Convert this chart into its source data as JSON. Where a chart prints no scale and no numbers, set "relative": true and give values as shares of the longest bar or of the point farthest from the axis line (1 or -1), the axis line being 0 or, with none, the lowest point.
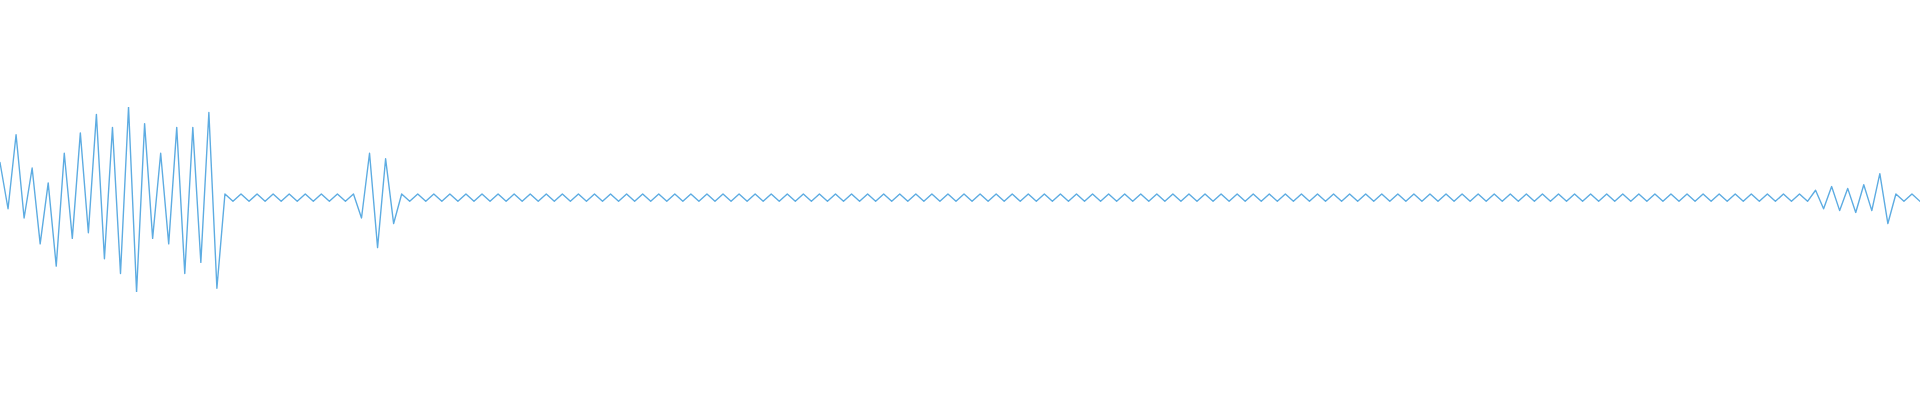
{
  "chart_data": {
    "type": "line",
    "relative": true,
    "categories": [
      null,
      null,
      null,
      null,
      null,
      null,
      null,
      null,
      null,
      null,
      null,
      null,
      null,
      null,
      null,
      null,
      null,
      null,
      null,
      null,
      null,
      null,
      null,
      null,
      null,
      null,
      null,
      null,
      null,
      null,
      null,
      null,
      null,
      null,
      null,
      null,
      null,
      null,
      null,
      null,
      null,
      null,
      null,
      null,
      null,
      null,
      null,
      null,
      null,
      null,
      null,
      null,
      null,
      null,
      null,
      null,
      null,
      null,
      null,
      null,
      null,
      null,
      null,
      null,
      null,
      null,
      null,
      null,
      null,
      null,
      null,
      null,
      null,
      null,
      null,
      null,
      null,
      null,
      null,
      null,
      null,
      null,
      null,
      null,
      null,
      null,
      null,
      null,
      null,
      null,
      null,
      null,
      null,
      null,
      null,
      null,
      null,
      null,
      null,
      null,
      null,
      null,
      null,
      null,
      null,
      null,
      null,
      null,
      null,
      null,
      null,
      null,
      null,
      null,
      null,
      null,
      null,
      null,
      null,
      null,
      null,
      null,
      null,
      null,
      null,
      null,
      null,
      null,
      null,
      null,
      null,
      null,
      null,
      null,
      null,
      null,
      null,
      null,
      null,
      null,
      null,
      null,
      null,
      null,
      null,
      null,
      null,
      null,
      null,
      null,
      null,
      null,
      null,
      null,
      null,
      null,
      null,
      null,
      null,
      null,
      null,
      null,
      null,
      null,
      null,
      null,
      null,
      null,
      null,
      null,
      null,
      null,
      null,
      null,
      null,
      null,
      null,
      null,
      null,
      null,
      null,
      null,
      null,
      null,
      null,
      null,
      null,
      null,
      null,
      null,
      null,
      null,
      null,
      null,
      null,
      null,
      null,
      null,
      null,
      null,
      null,
      null,
      null,
      null,
      null,
      null,
      null,
      null,
      null,
      null,
      null,
      null,
      null,
      null,
      null,
      null,
      null,
      null,
      null,
      null,
      null,
      null,
      null,
      null,
      null,
      null,
      null,
      null,
      null,
      null,
      null,
      null,
      null,
      null,
      null,
      null,
      null,
      null,
      null,
      null
    ],
    "series": [
      {
        "color": "#5dace2",
        "values": [
          0.7,
          0.45,
          0.85,
          0.4,
          0.67,
          0.26,
          0.59,
          0.14,
          0.75,
          0.29,
          0.86,
          0.32,
          0.96,
          0.18,
          0.89,
          0.1,
          1,
          0,
          0.91,
          0.29,
          0.75,
          0.26,
          0.89,
          0.1,
          0.89,
          0.16,
          0.97,
          0.02,
          0.53,
          0.49,
          0.53,
          0.49,
          0.53,
          0.49,
          0.53,
          0.49,
          0.53,
          0.49,
          0.53,
          0.49,
          0.53,
          0.49,
          0.53,
          0.49,
          0.53,
          0.4,
          0.75,
          0.24,
          0.72,
          0.37,
          0.53,
          0.49,
          0.53,
          0.49,
          0.53,
          0.49,
          0.53,
          0.49,
          0.53,
          0.49,
          0.53,
          0.49,
          0.53,
          0.49,
          0.53,
          0.49,
          0.53,
          0.49,
          0.53,
          0.49,
          0.53,
          0.49,
          0.53,
          0.49,
          0.53,
          0.49,
          0.53,
          0.49,
          0.53,
          0.49,
          0.53,
          0.49,
          0.53,
          0.49,
          0.53,
          0.49,
          0.53,
          0.49,
          0.53,
          0.49,
          0.53,
          0.49,
          0.53,
          0.49,
          0.53,
          0.49,
          0.53,
          0.49,
          0.53,
          0.49,
          0.53,
          0.49,
          0.53,
          0.49,
          0.53,
          0.49,
          0.53,
          0.49,
          0.53,
          0.49,
          0.53,
          0.49,
          0.53,
          0.49,
          0.53,
          0.49,
          0.53,
          0.49,
          0.53,
          0.49,
          0.53,
          0.49,
          0.53,
          0.49,
          0.53,
          0.49,
          0.53,
          0.49,
          0.53,
          0.49,
          0.53,
          0.49,
          0.53,
          0.49,
          0.53,
          0.49,
          0.53,
          0.49,
          0.53,
          0.49,
          0.53,
          0.49,
          0.53,
          0.49,
          0.53,
          0.49,
          0.53,
          0.49,
          0.53,
          0.49,
          0.53,
          0.49,
          0.53,
          0.49,
          0.53,
          0.49,
          0.53,
          0.49,
          0.53,
          0.49,
          0.53,
          0.49,
          0.53,
          0.49,
          0.53,
          0.49,
          0.53,
          0.49,
          0.53,
          0.49,
          0.53,
          0.49,
          0.53,
          0.49,
          0.53,
          0.49,
          0.53,
          0.49,
          0.53,
          0.49,
          0.53,
          0.49,
          0.53,
          0.49,
          0.53,
          0.49,
          0.53,
          0.49,
          0.53,
          0.49,
          0.53,
          0.49,
          0.53,
          0.49,
          0.53,
          0.49,
          0.53,
          0.49,
          0.53,
          0.49,
          0.53,
          0.49,
          0.53,
          0.49,
          0.53,
          0.49,
          0.53,
          0.49,
          0.53,
          0.49,
          0.53,
          0.49,
          0.53,
          0.49,
          0.53,
          0.49,
          0.53,
          0.49,
          0.53,
          0.49,
          0.53,
          0.49,
          0.53,
          0.49,
          0.53,
          0.49,
          0.55,
          0.45,
          0.57,
          0.44,
          0.56,
          0.43,
          0.58,
          0.44,
          0.64,
          0.37,
          0.53,
          0.49,
          0.53,
          0.49
        ]
      }
    ]
  }
}
